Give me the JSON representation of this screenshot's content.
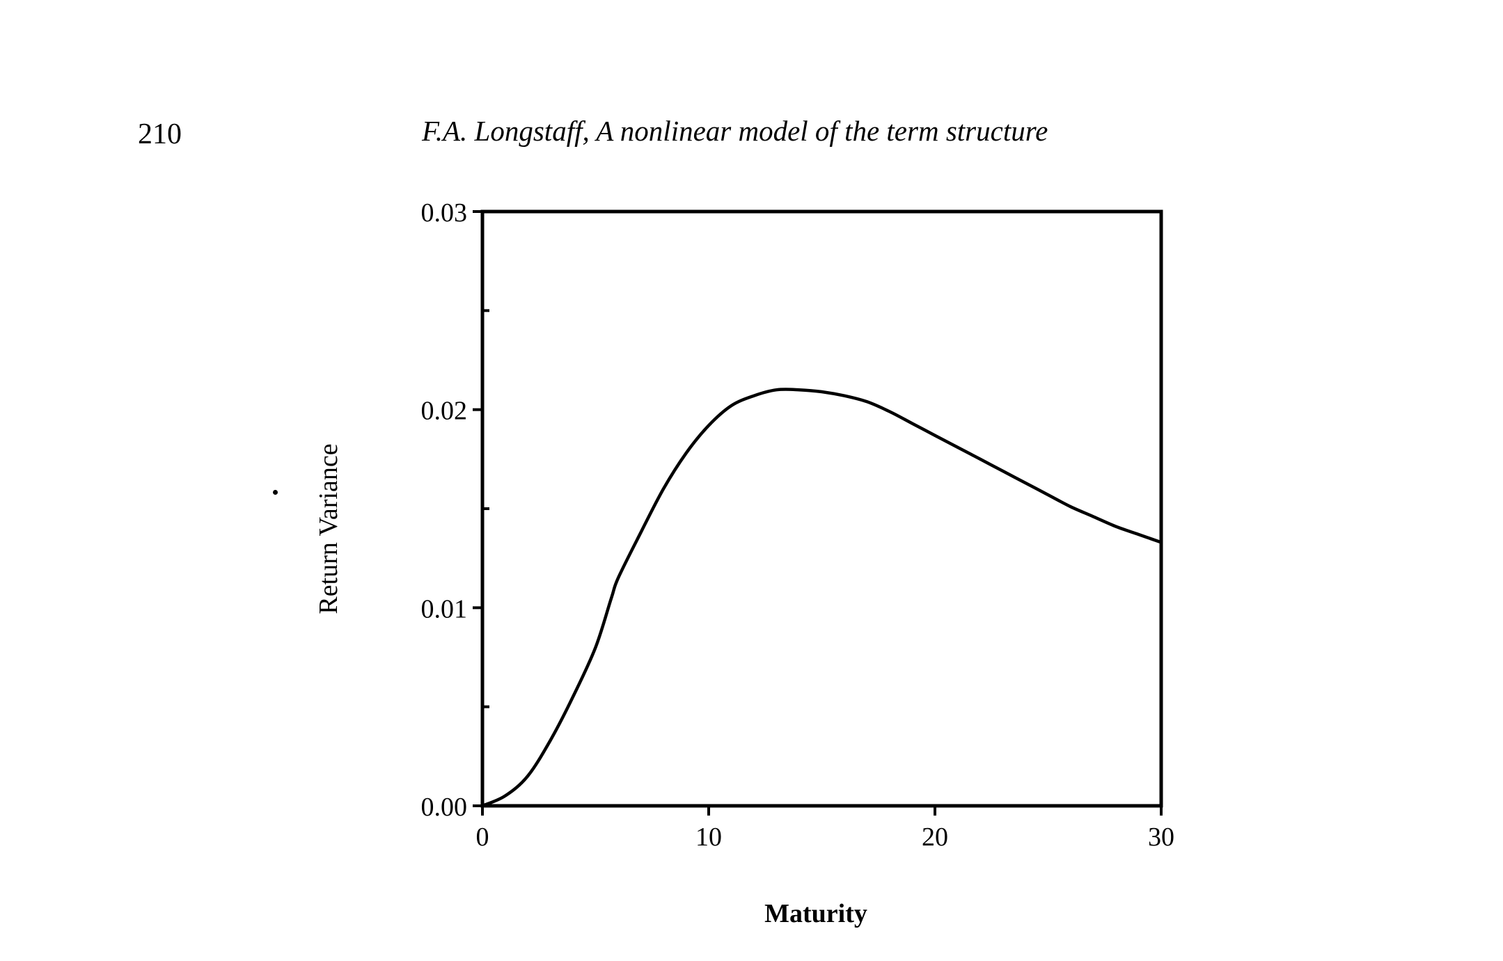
{
  "page": {
    "page_number": "210",
    "running_head": "F.A. Longstaff, A nonlinear model of the term structure"
  },
  "chart_data": {
    "type": "line",
    "title": "",
    "xlabel": "Maturity",
    "ylabel": "Return Variance",
    "xlim": [
      0,
      30
    ],
    "ylim": [
      0,
      0.03
    ],
    "x_ticks": [
      0,
      10,
      20,
      30
    ],
    "x_tick_labels": [
      "0",
      "10",
      "20",
      "30"
    ],
    "y_ticks": [
      0,
      0.01,
      0.02,
      0.03
    ],
    "y_tick_labels": [
      "0.00",
      "0.01",
      "0.02",
      "0.03"
    ],
    "y_minor_ticks": [
      0.005,
      0.015,
      0.025
    ],
    "grid": false,
    "legend": "none",
    "line_color": "#000000",
    "series": [
      {
        "x": [
          0,
          1,
          2,
          3,
          4,
          5,
          5.7,
          6,
          7,
          8,
          9,
          10,
          11,
          12,
          13,
          14,
          15,
          16,
          17,
          18,
          19,
          20,
          21,
          22,
          23,
          24,
          25,
          26,
          27,
          28,
          29,
          30
        ],
        "y": [
          0,
          0.0005,
          0.0015,
          0.0033,
          0.0055,
          0.008,
          0.0105,
          0.0115,
          0.0138,
          0.016,
          0.0178,
          0.0192,
          0.0202,
          0.0207,
          0.021,
          0.021,
          0.0209,
          0.0207,
          0.0204,
          0.0199,
          0.0193,
          0.0187,
          0.0181,
          0.0175,
          0.0169,
          0.0163,
          0.0157,
          0.0151,
          0.0146,
          0.0141,
          0.0137,
          0.0133
        ]
      }
    ]
  }
}
